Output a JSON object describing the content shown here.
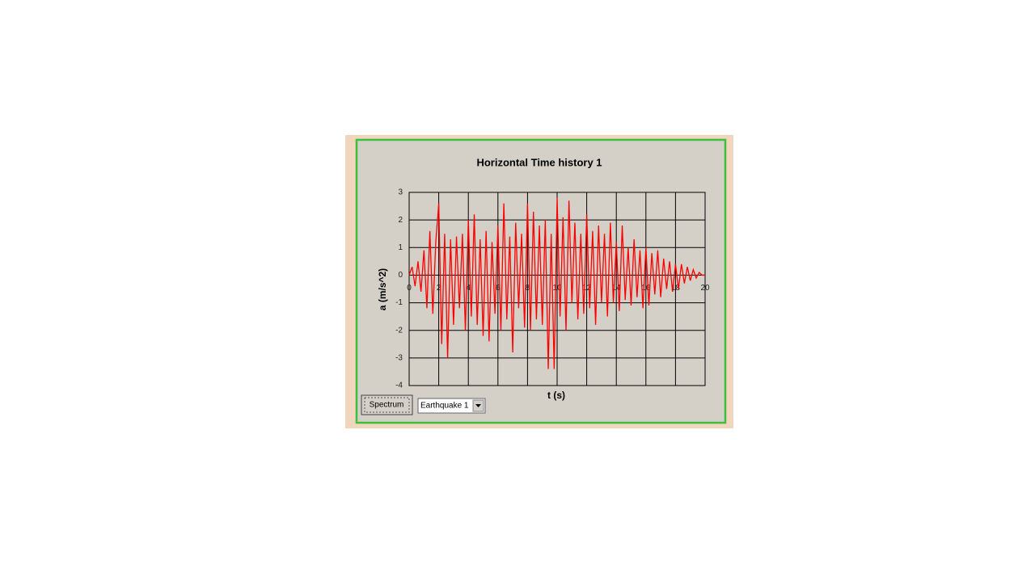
{
  "chart_data": {
    "type": "line",
    "title": "Horizontal Time history 1",
    "x_label": "t (s)",
    "y_label": "a (m/s^2)",
    "x": [
      0,
      0.2,
      0.4,
      0.6,
      0.8,
      1,
      1.2,
      1.4,
      1.6,
      1.8,
      2,
      2.2,
      2.4,
      2.6,
      2.8,
      3,
      3.2,
      3.4,
      3.6,
      3.8,
      4,
      4.2,
      4.4,
      4.6,
      4.8,
      5,
      5.2,
      5.4,
      5.6,
      5.8,
      6,
      6.2,
      6.4,
      6.6,
      6.8,
      7,
      7.2,
      7.4,
      7.6,
      7.8,
      8,
      8.2,
      8.4,
      8.6,
      8.8,
      9,
      9.2,
      9.4,
      9.6,
      9.8,
      10,
      10.2,
      10.4,
      10.6,
      10.8,
      11,
      11.2,
      11.4,
      11.6,
      11.8,
      12,
      12.2,
      12.4,
      12.6,
      12.8,
      13,
      13.2,
      13.4,
      13.6,
      13.8,
      14,
      14.2,
      14.4,
      14.6,
      14.8,
      15,
      15.2,
      15.4,
      15.6,
      15.8,
      16,
      16.2,
      16.4,
      16.6,
      16.8,
      17,
      17.2,
      17.4,
      17.6,
      17.8,
      18,
      18.2,
      18.4,
      18.6,
      18.8,
      19,
      19.2,
      19.4,
      19.6,
      19.8,
      20
    ],
    "series": [
      {
        "color": "#ff0000",
        "values": [
          0,
          0.3,
          -0.4,
          0.5,
          -0.6,
          0.9,
          -1.2,
          1.6,
          -1.4,
          1.2,
          2.6,
          -2.5,
          1.5,
          -3.0,
          1.3,
          -1.8,
          1.4,
          -1.2,
          1.5,
          -2.0,
          2.0,
          -1.5,
          2.2,
          -1.8,
          1.3,
          -2.2,
          1.6,
          -2.4,
          1.2,
          -1.4,
          1.8,
          -2.0,
          2.6,
          -1.6,
          1.4,
          -2.8,
          1.9,
          -1.2,
          1.5,
          -1.9,
          2.6,
          -2.0,
          2.3,
          -1.6,
          1.8,
          -1.8,
          2.0,
          -3.4,
          1.5,
          -3.4,
          2.8,
          -1.5,
          2.1,
          -2.0,
          2.7,
          -1.0,
          1.9,
          -1.6,
          1.5,
          -1.4,
          2.2,
          -1.2,
          1.6,
          -1.8,
          1.8,
          -1.0,
          1.5,
          -1.5,
          1.9,
          -1.0,
          1.2,
          -1.3,
          1.8,
          -0.9,
          1.0,
          -1.1,
          1.3,
          -0.8,
          0.9,
          -1.2,
          1.0,
          -1.1,
          0.8,
          -0.7,
          0.9,
          -0.8,
          0.6,
          -0.5,
          0.5,
          -0.6,
          0.4,
          -0.5,
          0.4,
          -0.3,
          0.3,
          -0.2,
          0.2,
          -0.1,
          0.1,
          0,
          0
        ]
      }
    ],
    "xlim": [
      0,
      20
    ],
    "xticks": [
      0,
      2,
      4,
      6,
      8,
      10,
      12,
      14,
      16,
      18,
      20
    ],
    "ylim": [
      -4,
      3
    ],
    "yticks": [
      -4,
      -3,
      -2,
      -1,
      0,
      1,
      2,
      3
    ],
    "grid": true
  },
  "controls": {
    "button": "Spectrum",
    "dropdown": "Earthquake 1"
  }
}
